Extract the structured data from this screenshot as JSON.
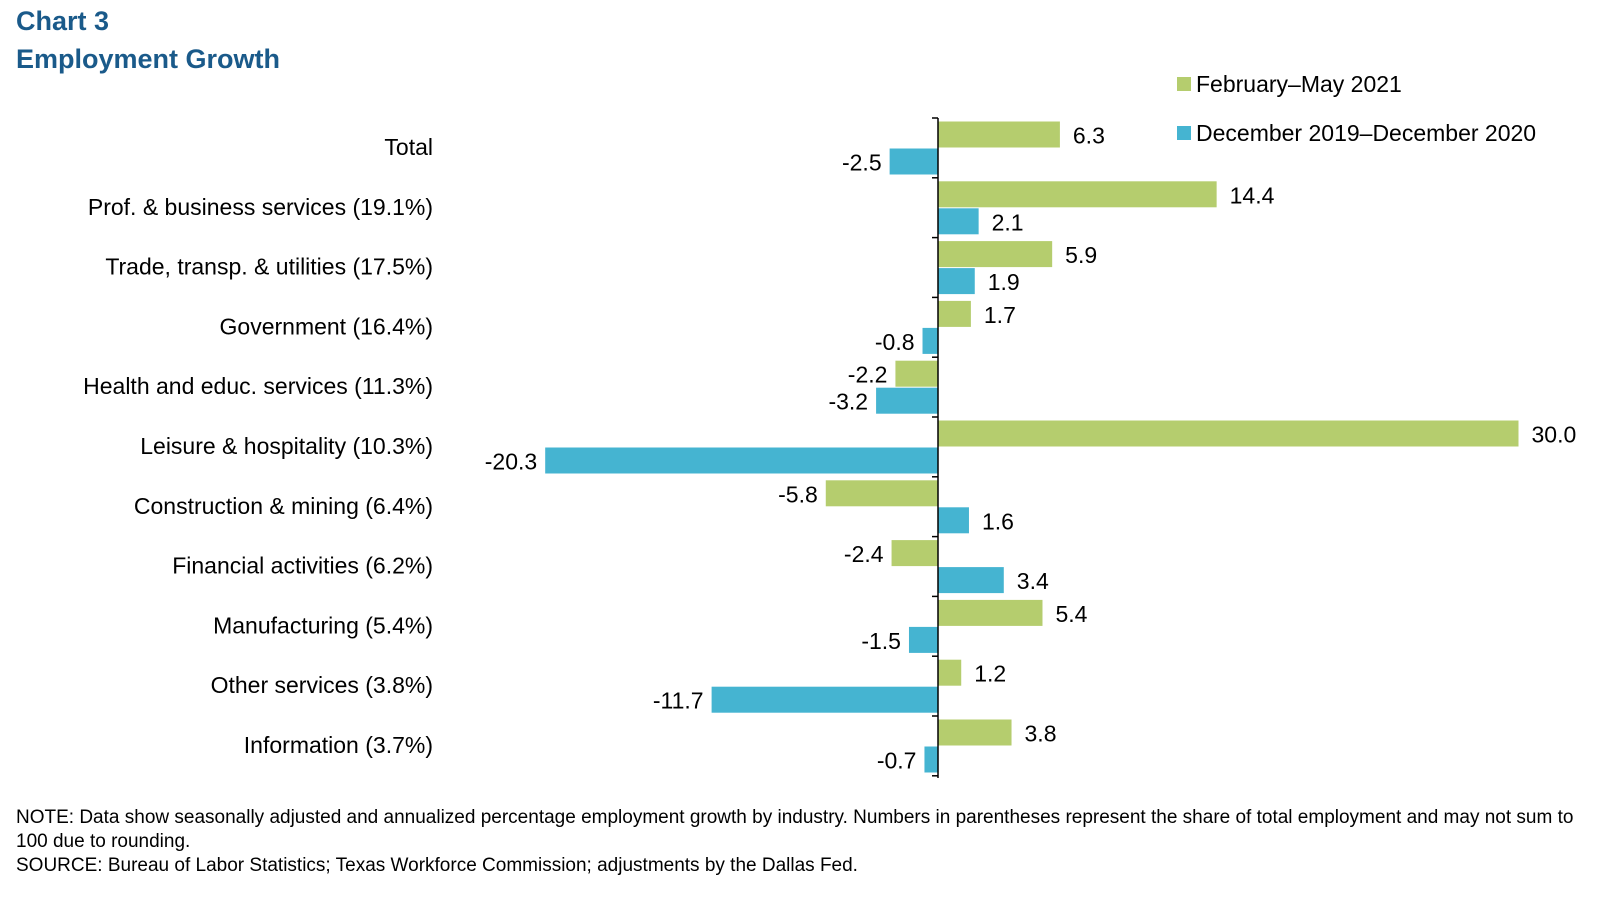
{
  "header": {
    "chart_label": "Chart 3",
    "title": "Employment  Growth"
  },
  "footer": {
    "note": "NOTE: Data show seasonally adjusted and annualized  percentage employment growth by industry. Numbers in parentheses represent the share of total employment and may not sum to 100 due to rounding.",
    "source": "SOURCE: Bureau  of Labor Statistics; Texas Workforce Commission; adjustments  by the Dallas Fed."
  },
  "chart_data": {
    "type": "bar",
    "orientation": "horizontal",
    "title": "Employment  Growth",
    "categories": [
      "Total",
      "Prof. & business services (19.1%)",
      "Trade, transp. & utilities (17.5%)",
      "Government (16.4%)",
      "Health and educ. services (11.3%)",
      "Leisure & hospitality (10.3%)",
      "Construction & mining (6.4%)",
      "Financial activities (6.2%)",
      "Manufacturing (5.4%)",
      "Other services (3.8%)",
      "Information (3.7%)"
    ],
    "series": [
      {
        "name": "February–May  2021",
        "color": "#b5cd6e",
        "values": [
          6.3,
          14.4,
          5.9,
          1.7,
          -2.2,
          30.0,
          -5.8,
          -2.4,
          5.4,
          1.2,
          3.8
        ],
        "labels": [
          "6.3",
          "14.4",
          "5.9",
          "1.7",
          "-2.2",
          "30.0",
          "-5.8",
          "-2.4",
          "5.4",
          "1.2",
          "3.8"
        ]
      },
      {
        "name": "December  2019–December  2020",
        "color": "#45b4d1",
        "values": [
          -2.5,
          2.1,
          1.9,
          -0.8,
          -3.2,
          -20.3,
          1.6,
          3.4,
          -1.5,
          -11.7,
          -0.7
        ],
        "labels": [
          "-2.5",
          "2.1",
          "1.9",
          "-0.8",
          "-3.2",
          "-20.3",
          "1.6",
          "3.4",
          "-1.5",
          "-11.7",
          "-0.7"
        ]
      }
    ],
    "legend_position": "top-right",
    "grid": false
  }
}
